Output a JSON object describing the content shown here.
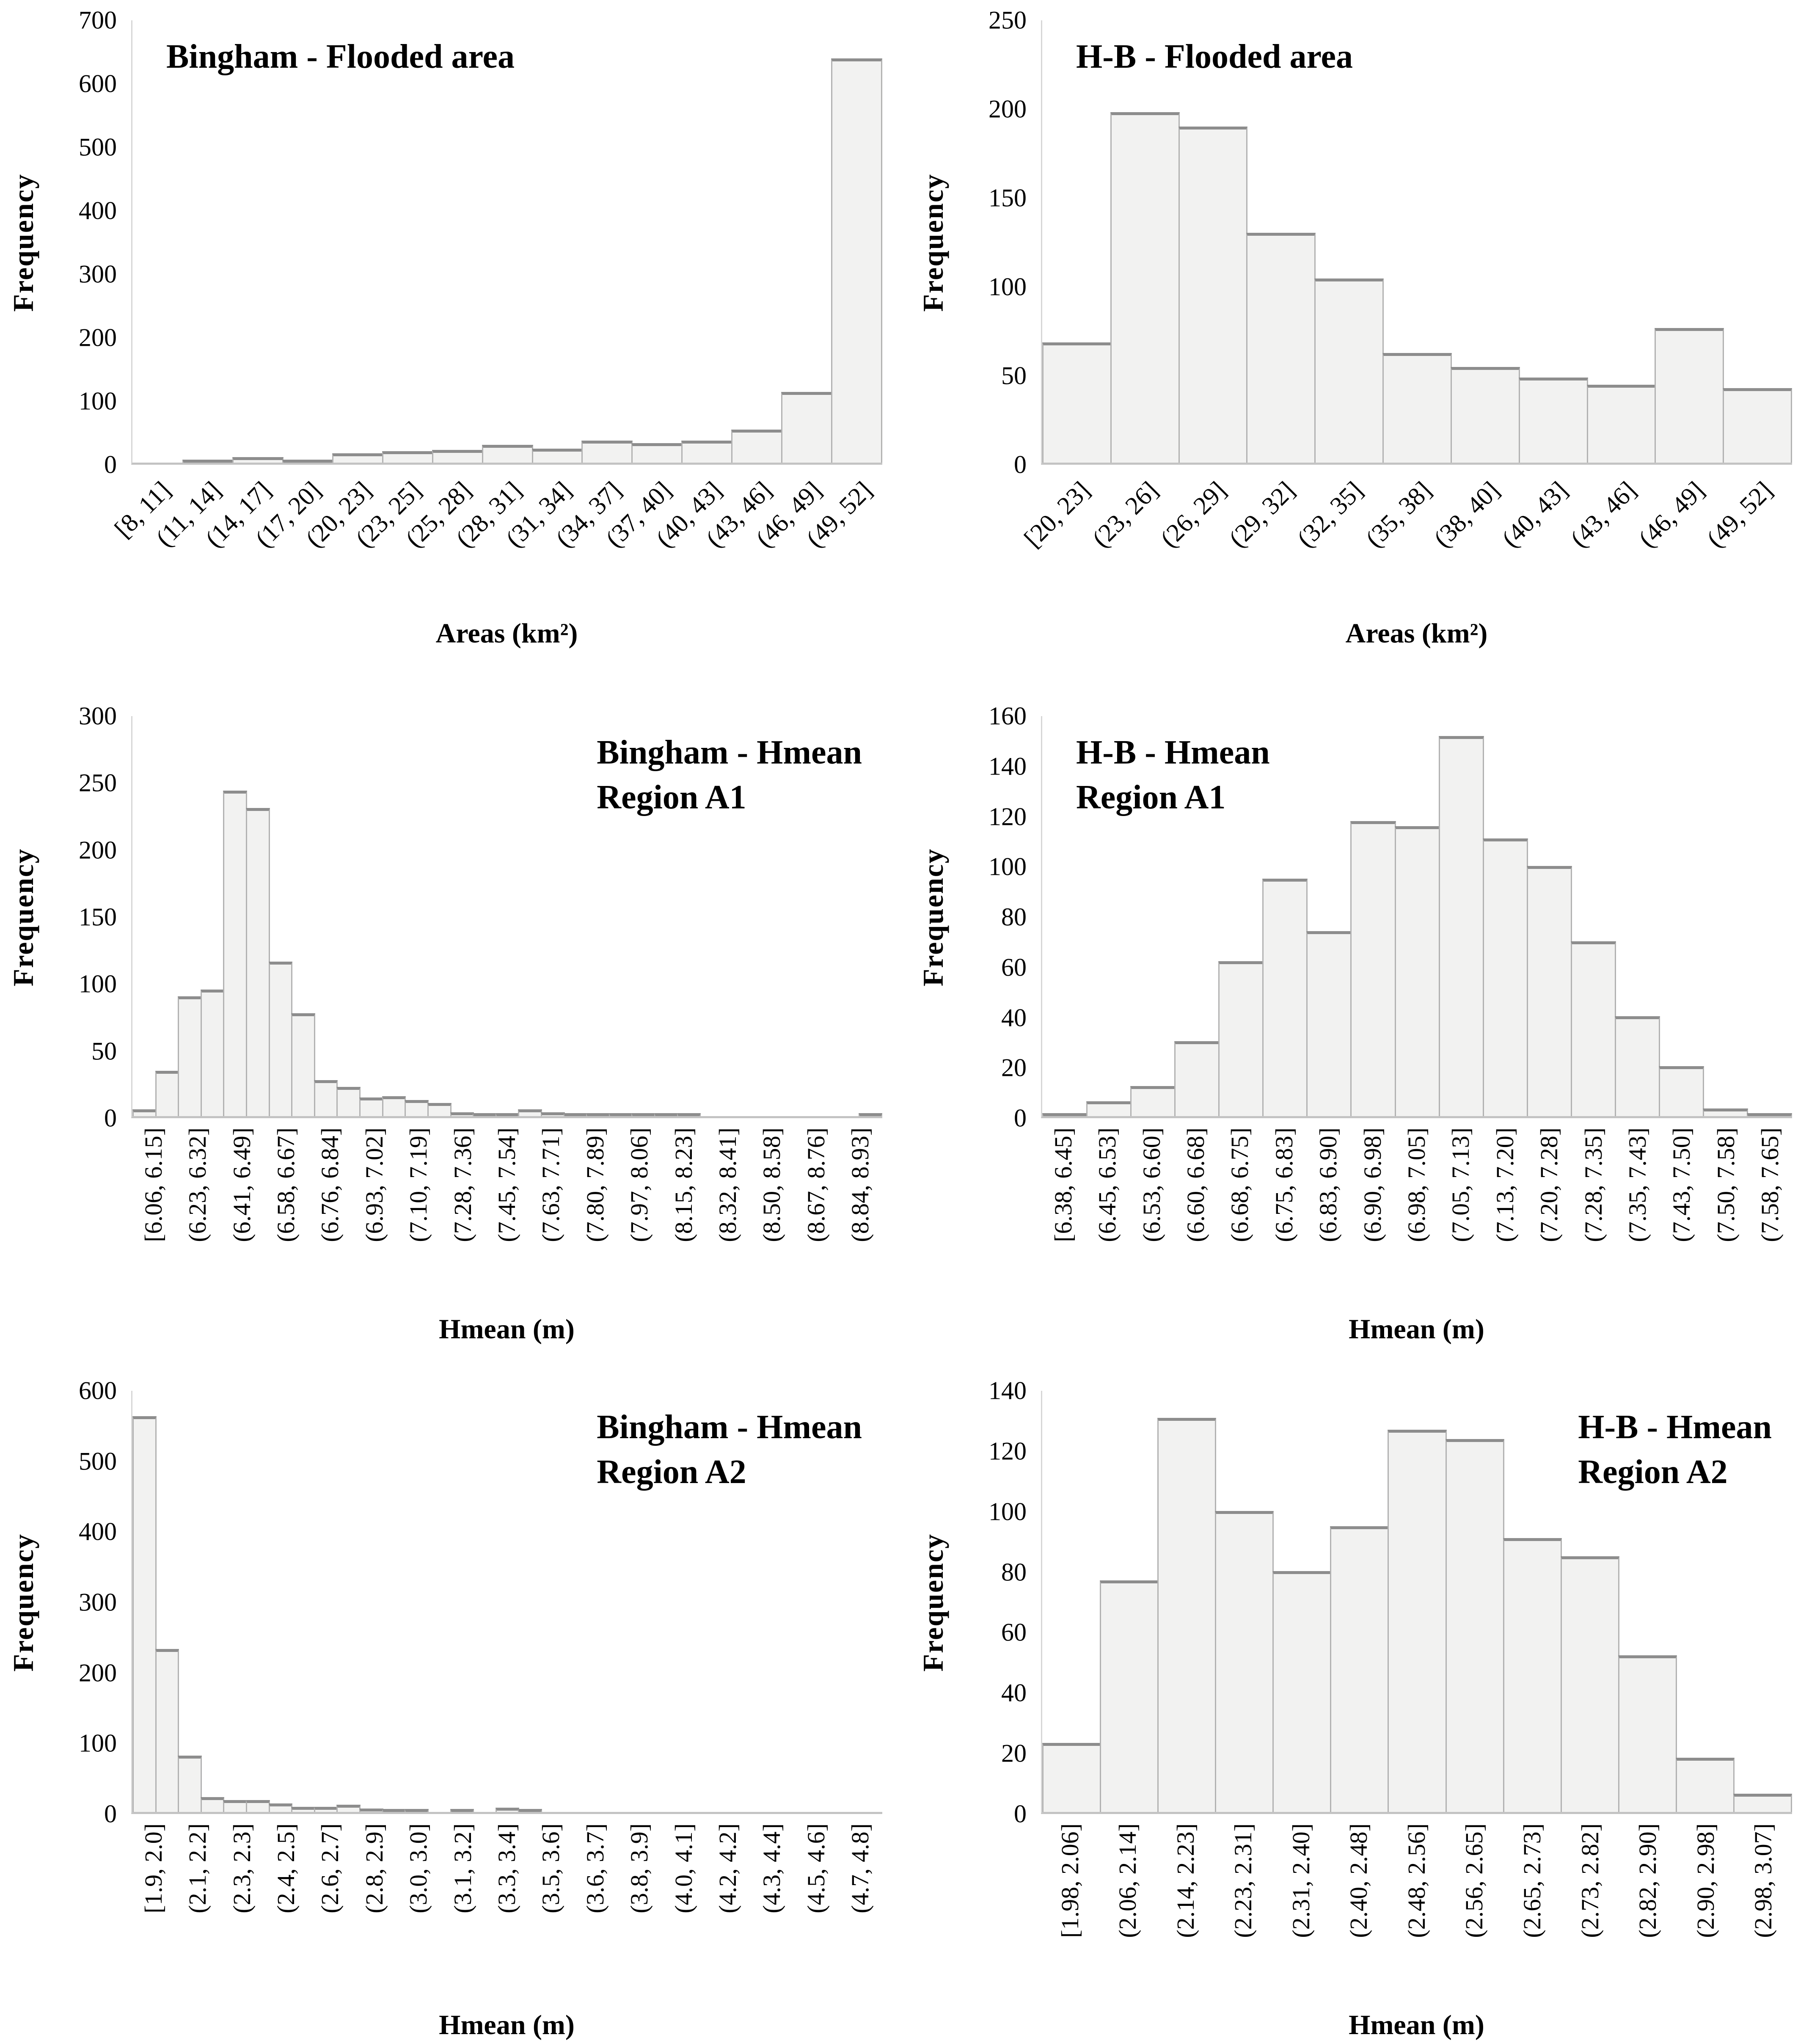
{
  "figure_type": "histogram-grid",
  "chart_data": [
    {
      "type": "bar",
      "title": "Bingham - Flooded area",
      "title_lines": [
        "Bingham - Flooded area"
      ],
      "title_pos": "left",
      "xlabel": "Areas (km²)",
      "ylabel": "Frequency",
      "ylim": [
        0,
        700
      ],
      "yticks": [
        700,
        600,
        500,
        400,
        300,
        200,
        100,
        0
      ],
      "x_label_rotation": 45,
      "label_every": 1,
      "categories": [
        "[8, 11]",
        "(11, 14]",
        "(14, 17]",
        "(17, 20]",
        "(20, 23]",
        "(23, 25]",
        "(25, 28]",
        "(28, 31]",
        "(31, 34]",
        "(34, 37]",
        "(37, 40]",
        "(40, 43]",
        "(43, 46]",
        "(46, 49]",
        "(49, 52]"
      ],
      "values": [
        0,
        2,
        9,
        2,
        15,
        18,
        20,
        28,
        22,
        35,
        31,
        35,
        52,
        112,
        640
      ]
    },
    {
      "type": "bar",
      "title": "H-B - Flooded area",
      "title_lines": [
        "H-B - Flooded area"
      ],
      "title_pos": "left",
      "xlabel": "Areas (km²)",
      "ylabel": "Frequency",
      "ylim": [
        0,
        250
      ],
      "yticks": [
        250,
        200,
        150,
        100,
        50,
        0
      ],
      "x_label_rotation": 45,
      "label_every": 1,
      "categories": [
        "[20, 23]",
        "(23, 26]",
        "(26, 29]",
        "(29, 32]",
        "(32, 35]",
        "(35, 38]",
        "(38, 40]",
        "(40, 43]",
        "(43, 46]",
        "(46, 49]",
        "(49, 52]"
      ],
      "values": [
        68,
        198,
        190,
        130,
        104,
        62,
        54,
        48,
        44,
        76,
        42
      ]
    },
    {
      "type": "bar",
      "title": "Bingham - Hmean Region A1",
      "title_lines": [
        "Bingham - Hmean",
        "Region A1"
      ],
      "title_pos": "right",
      "xlabel": "Hmean (m)",
      "ylabel": "Frequency",
      "ylim": [
        0,
        300
      ],
      "yticks": [
        300,
        250,
        200,
        150,
        100,
        50,
        0
      ],
      "x_label_rotation": 90,
      "label_every": 2,
      "categories": [
        "[6.06, 6.15]",
        "(6.23, 6.32]",
        "(6.41, 6.49]",
        "(6.58, 6.67]",
        "(6.76, 6.84]",
        "(6.93, 7.02]",
        "(7.10, 7.19]",
        "(7.28, 7.36]",
        "(7.45, 7.54]",
        "(7.63, 7.71]",
        "(7.80, 7.89]",
        "(7.97, 8.06]",
        "(8.15, 8.23]",
        "(8.32, 8.41]",
        "(8.50, 8.58]",
        "(8.67, 8.76]",
        "(8.84, 8.93]"
      ],
      "values": [
        5,
        34,
        90,
        95,
        244,
        231,
        116,
        77,
        27,
        22,
        14,
        15,
        12,
        10,
        3,
        2,
        2,
        5,
        3,
        2,
        2,
        1,
        1,
        1,
        1,
        0,
        0,
        0,
        0,
        0,
        0,
        0,
        2
      ]
    },
    {
      "type": "bar",
      "title": "H-B - Hmean Region A1",
      "title_lines": [
        "H-B - Hmean",
        "Region A1"
      ],
      "title_pos": "left",
      "xlabel": "Hmean (m)",
      "ylabel": "Frequency",
      "ylim": [
        0,
        160
      ],
      "yticks": [
        160,
        140,
        120,
        100,
        80,
        60,
        40,
        20,
        0
      ],
      "x_label_rotation": 90,
      "label_every": 1,
      "categories": [
        "[6.38, 6.45]",
        "(6.45, 6.53]",
        "(6.53, 6.60]",
        "(6.60, 6.68]",
        "(6.68, 6.75]",
        "(6.75, 6.83]",
        "(6.83, 6.90]",
        "(6.90, 6.98]",
        "(6.98, 7.05]",
        "(7.05, 7.13]",
        "(7.13, 7.20]",
        "(7.20, 7.28]",
        "(7.28, 7.35]",
        "(7.35, 7.43]",
        "(7.43, 7.50]",
        "(7.50, 7.58]",
        "(7.58, 7.65]"
      ],
      "values": [
        1,
        6,
        12,
        30,
        62,
        95,
        74,
        118,
        116,
        152,
        111,
        100,
        70,
        40,
        20,
        3,
        1
      ]
    },
    {
      "type": "bar",
      "title": "Bingham - Hmean Region A2",
      "title_lines": [
        "Bingham - Hmean",
        "Region A2"
      ],
      "title_pos": "right",
      "xlabel": "Hmean (m)",
      "ylabel": "Frequency",
      "ylim": [
        0,
        600
      ],
      "yticks": [
        600,
        500,
        400,
        300,
        200,
        100,
        0
      ],
      "x_label_rotation": 90,
      "label_every": 2,
      "categories": [
        "[1.9, 2.0]",
        "(2.1, 2.2]",
        "(2.3, 2.3]",
        "(2.4, 2.5]",
        "(2.6, 2.7]",
        "(2.8, 2.9]",
        "(3.0, 3.0]",
        "(3.1, 3.2]",
        "(3.3, 3.4]",
        "(3.5, 3.6]",
        "(3.6, 3.7]",
        "(3.8, 3.9]",
        "(4.0, 4.1]",
        "(4.2, 4.2]",
        "(4.3, 4.4]",
        "(4.5, 4.6]",
        "(4.7, 4.8]"
      ],
      "values": [
        564,
        232,
        80,
        21,
        17,
        17,
        12,
        7,
        7,
        10,
        5,
        2,
        2,
        0,
        2,
        0,
        6,
        2,
        0,
        0,
        0,
        0,
        0,
        0,
        0,
        0,
        0,
        0,
        0,
        0,
        0,
        0,
        0
      ]
    },
    {
      "type": "bar",
      "title": "H-B - Hmean Region A2",
      "title_lines": [
        "H-B - Hmean",
        "Region A2"
      ],
      "title_pos": "right",
      "xlabel": "Hmean (m)",
      "ylabel": "Frequency",
      "ylim": [
        0,
        140
      ],
      "yticks": [
        140,
        120,
        100,
        80,
        60,
        40,
        20,
        0
      ],
      "x_label_rotation": 90,
      "label_every": 1,
      "categories": [
        "[1.98, 2.06]",
        "(2.06, 2.14]",
        "(2.14, 2.23]",
        "(2.23, 2.31]",
        "(2.31, 2.40]",
        "(2.40, 2.48]",
        "(2.48, 2.56]",
        "(2.56, 2.65]",
        "(2.65, 2.73]",
        "(2.73, 2.82]",
        "(2.82, 2.90]",
        "(2.90, 2.98]",
        "(2.98, 3.07]"
      ],
      "values": [
        23,
        77,
        131,
        100,
        80,
        95,
        127,
        124,
        91,
        85,
        52,
        18,
        6
      ]
    }
  ],
  "colors": {
    "bar_fill": "#f2f2f1",
    "bar_border": "#b2b2b2",
    "bar_top_edge": "#8d8d8d",
    "axis_line": "#c3c3c3",
    "text": "#000000",
    "background": "#ffffff"
  }
}
